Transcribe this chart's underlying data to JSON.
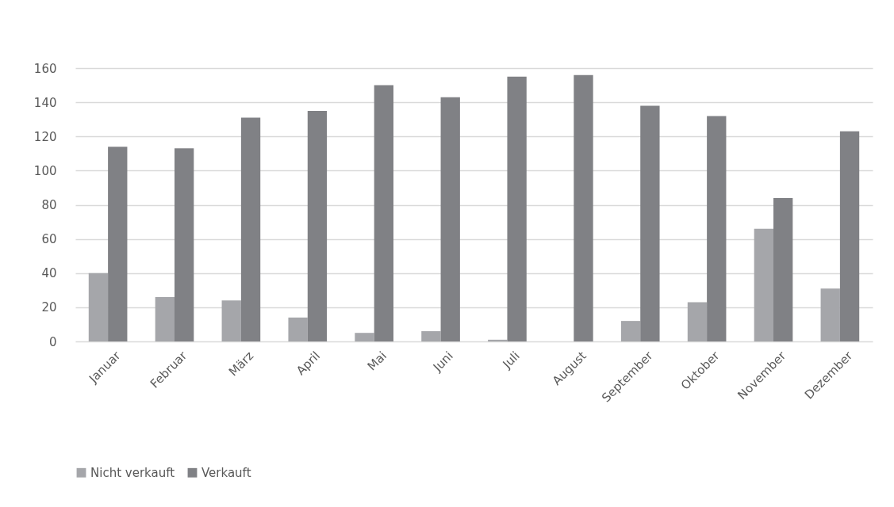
{
  "chart_data": {
    "type": "bar",
    "categories": [
      "Januar",
      "Februar",
      "März",
      "April",
      "Mai",
      "Juni",
      "Juli",
      "August",
      "September",
      "Oktober",
      "November",
      "Dezember"
    ],
    "series": [
      {
        "name": "Nicht verkauft",
        "color": "#a5a6aa",
        "values": [
          40,
          26,
          24,
          14,
          5,
          6,
          1,
          0,
          12,
          23,
          66,
          31
        ]
      },
      {
        "name": "Verkauft",
        "color": "#808185",
        "values": [
          114,
          113,
          131,
          135,
          150,
          143,
          155,
          156,
          138,
          132,
          84,
          123
        ]
      }
    ],
    "ylim": [
      0,
      160
    ],
    "yticks": [
      0,
      20,
      40,
      60,
      80,
      100,
      120,
      140,
      160
    ],
    "grid": "y",
    "legend": "bottom"
  }
}
